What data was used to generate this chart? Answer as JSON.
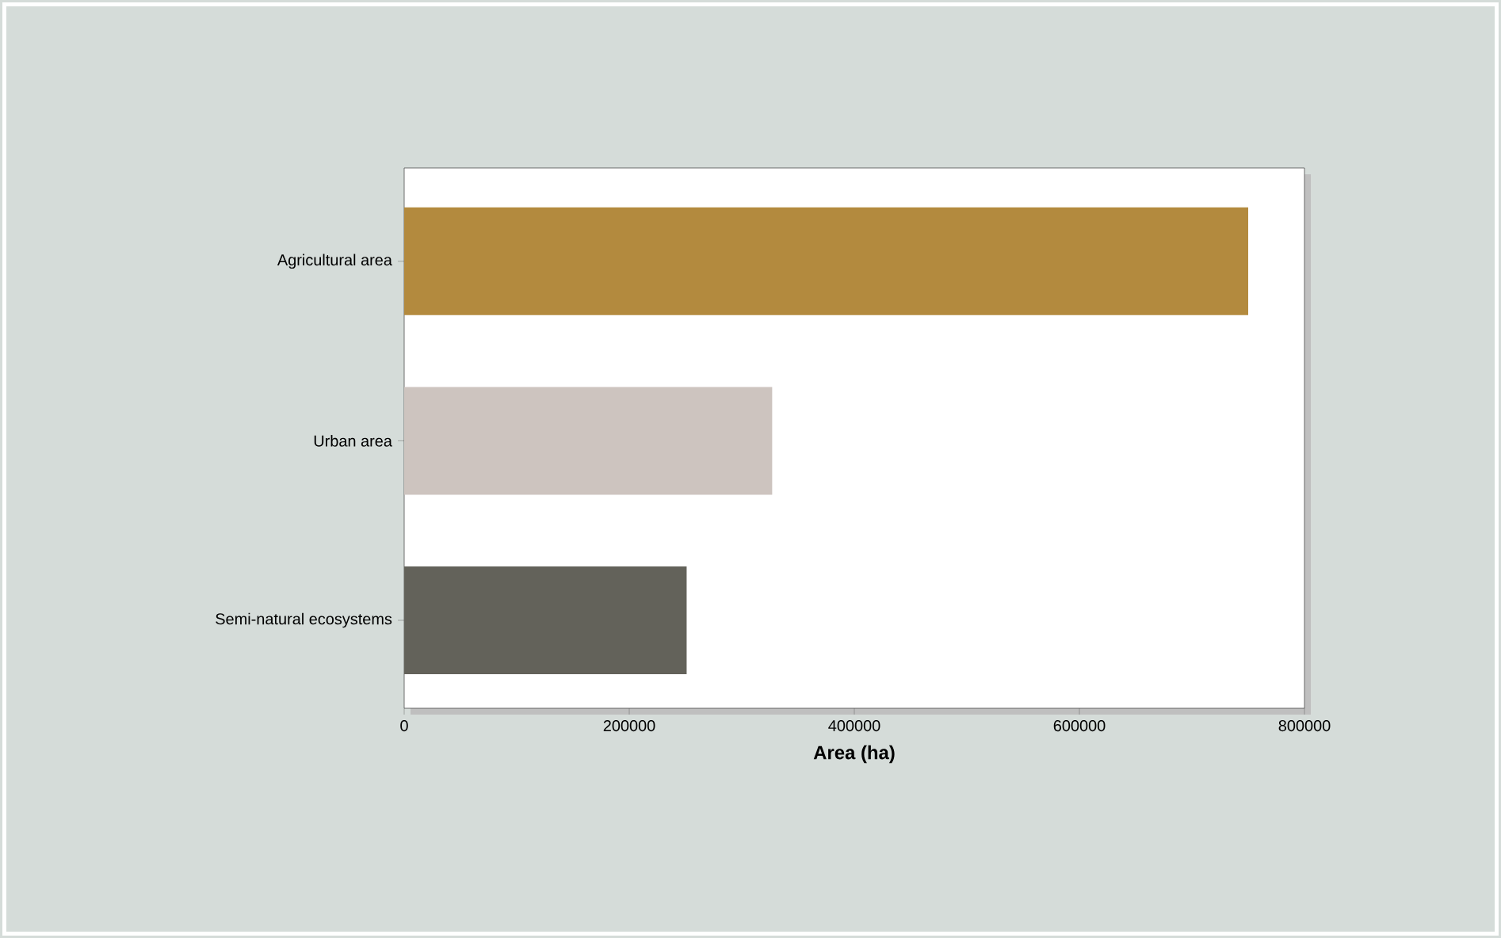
{
  "chart_data": {
    "type": "bar",
    "orientation": "horizontal",
    "categories": [
      "Agricultural area",
      "Urban area",
      "Semi-natural ecosystems"
    ],
    "values": [
      750000,
      327000,
      251000
    ],
    "colors": [
      "#b38a3e",
      "#cdc4bf",
      "#63625a"
    ],
    "xlim": [
      0,
      800000
    ],
    "xticks": [
      0,
      200000,
      400000,
      600000,
      800000
    ],
    "xlabel": "Area (ha)"
  }
}
